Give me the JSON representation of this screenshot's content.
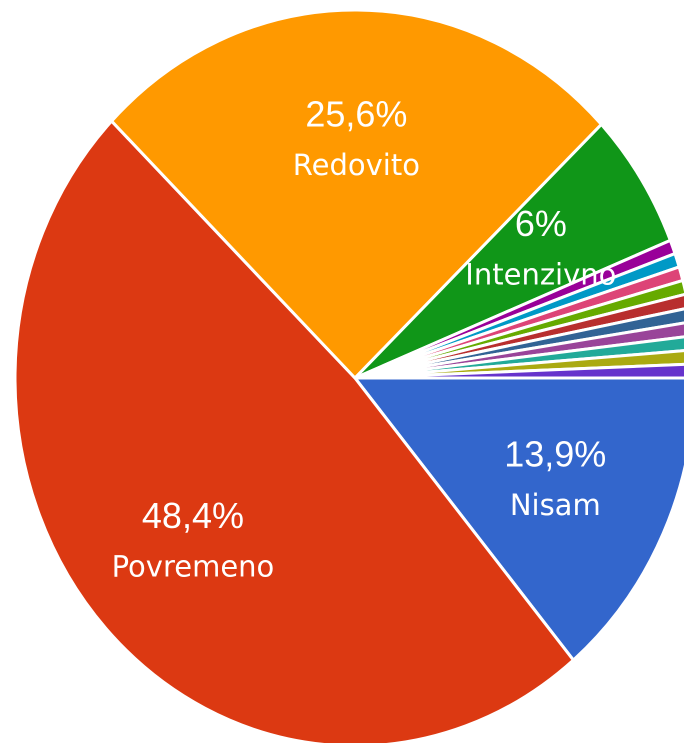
{
  "chart_data": {
    "type": "pie",
    "categories": [
      "Nisam",
      "Povremeno",
      "Redovito",
      "Intenzivno",
      null,
      null,
      null,
      null,
      null,
      null,
      null,
      null,
      null,
      null
    ],
    "values": [
      13.9,
      48.4,
      25.6,
      6,
      0.61,
      0.61,
      0.61,
      0.61,
      0.61,
      0.61,
      0.61,
      0.61,
      0.61,
      0.61
    ],
    "value_labels": [
      "13,9%",
      "48,4%",
      "25,6%",
      "6%",
      null,
      null,
      null,
      null,
      null,
      null,
      null,
      null,
      null,
      null
    ],
    "colors": [
      "#3366cc",
      "#dc3912",
      "#ff9900",
      "#109618",
      "#990099",
      "#0099c6",
      "#dd4477",
      "#66aa00",
      "#b82e2e",
      "#316395",
      "#994499",
      "#22aa99",
      "#aaaa11",
      "#6633cc"
    ]
  }
}
